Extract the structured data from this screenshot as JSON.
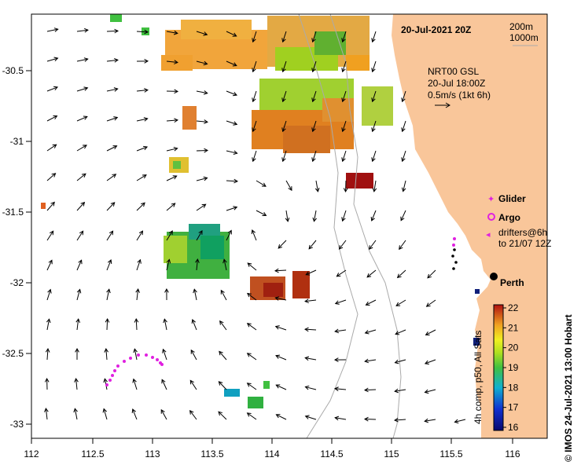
{
  "title": "20-Jul-2021 20Z",
  "depth_legend": [
    "200m",
    "1000m"
  ],
  "current_info": {
    "product": "NRT00 GSL",
    "time": "20-Jul 18:00Z",
    "scale": "0.5m/s (1kt 6h)"
  },
  "legend": {
    "glider": "Glider",
    "argo": "Argo",
    "drifters_line1": "drifters@6h",
    "drifters_line2": "to 21/07 12Z"
  },
  "city": "Perth",
  "colorbar": {
    "label": "4h comp, p50, All Sats",
    "ticks": [
      "22",
      "21",
      "20",
      "19",
      "18",
      "17",
      "16"
    ],
    "min": 16,
    "max": 22
  },
  "credit": "© IMOS 24-Jul-2021 13:00 Hobart",
  "x_axis": {
    "ticks": [
      "112",
      "112.5",
      "113",
      "113.5",
      "114",
      "114.5",
      "115",
      "115.5",
      "116"
    ],
    "range": [
      112,
      116.3
    ]
  },
  "y_axis": {
    "ticks": [
      "-30.5",
      "-31",
      "-31.5",
      "-32",
      "-32.5",
      "-33"
    ],
    "range": [
      -33.1,
      -30.05
    ]
  },
  "colors": {
    "land": "#f9c69a",
    "glider": "#e020e0",
    "argo": "#e020e0",
    "drifter": "#e020e0"
  }
}
